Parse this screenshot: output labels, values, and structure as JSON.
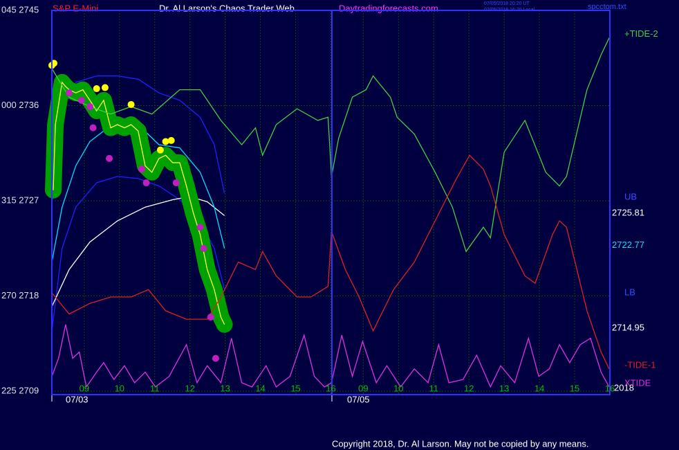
{
  "chart_data": {
    "type": "line",
    "header": {
      "instrument": "S&P E-Mini",
      "title": "Dr. Al Larson's Chaos Trader Web",
      "site": "Daytradingforecasts.com",
      "time_ut": "07/05/2018 20:20 UT",
      "time_local": "07/05/2018 16:20 Local",
      "file": "spcctom.txt"
    },
    "footer": "Copyright 2018, Dr. Al Larson. May not be copied by any means.",
    "xlim": [
      -0.92,
      14.92
    ],
    "xticks": [
      {
        "value": 0,
        "label": "09"
      },
      {
        "value": 1,
        "label": "10"
      },
      {
        "value": 2,
        "label": "11"
      },
      {
        "value": 3,
        "label": "12"
      },
      {
        "value": 4,
        "label": "13"
      },
      {
        "value": 5,
        "label": "14"
      },
      {
        "value": 6,
        "label": "15"
      },
      {
        "value": 7,
        "label": "16"
      },
      {
        "value": 7.92,
        "label": "09"
      },
      {
        "value": 8.92,
        "label": "10"
      },
      {
        "value": 9.92,
        "label": "11"
      },
      {
        "value": 10.92,
        "label": "12"
      },
      {
        "value": 11.92,
        "label": "13"
      },
      {
        "value": 12.92,
        "label": "14"
      },
      {
        "value": 13.92,
        "label": "15"
      },
      {
        "value": 14.92,
        "label": "16"
      }
    ],
    "dates": [
      "07/03",
      "07/05"
    ],
    "year": "2018",
    "ylim": [
      2709,
      2745
    ],
    "yticks": [
      {
        "value": 2709,
        "label": "225 2709"
      },
      {
        "value": 2718,
        "label": "270 2718"
      },
      {
        "value": 2727,
        "label": "315 2727"
      },
      {
        "value": 2736,
        "label": "000 2736"
      },
      {
        "value": 2745,
        "label": "045 2745"
      }
    ],
    "grid": true,
    "series": [
      {
        "color": "#2020ff",
        "x": [
          -0.92,
          -0.63,
          -0.24,
          0.35,
          0.94,
          1.53,
          2.12,
          2.71,
          3.29,
          3.69,
          3.98
        ],
        "values": [
          2729.0,
          2735.5,
          2738.2,
          2738.8,
          2738.8,
          2738.5,
          2737.2,
          2736.5,
          2734.9,
          2732.3,
          2727.7
        ]
      },
      {
        "color": "#2020ff",
        "x": [
          -0.92,
          -0.63,
          -0.24,
          0.35,
          0.94,
          1.53,
          2.12,
          2.71,
          3.29,
          3.69,
          3.98
        ],
        "values": [
          2714.7,
          2722.5,
          2726.4,
          2728.7,
          2729.3,
          2729.1,
          2728.4,
          2727.1,
          2725.1,
          2722.5,
          2718.6
        ]
      },
      {
        "color": "#ffffff",
        "x": [
          -0.92,
          -0.43,
          0.16,
          0.94,
          1.73,
          2.51,
          3.0,
          3.49,
          3.98
        ],
        "values": [
          2717.0,
          2720.5,
          2723.1,
          2725.1,
          2726.4,
          2727.1,
          2727.4,
          2726.9,
          2725.6
        ]
      },
      {
        "color": "#00e0ff",
        "x": [
          -0.92,
          -0.63,
          -0.24,
          0.16,
          0.55,
          0.94,
          1.53,
          2.12,
          2.71,
          3.29,
          3.69,
          3.98
        ],
        "values": [
          2721.2,
          2726.4,
          2730.3,
          2732.6,
          2733.6,
          2733.9,
          2734.2,
          2732.3,
          2732.0,
          2729.7,
          2726.4,
          2722.5
        ]
      },
      {
        "color": "#ffff40",
        "halo": "#00a000",
        "x": [
          -0.88,
          -0.82,
          -0.63,
          -0.53,
          -0.43,
          -0.24,
          -0.04,
          0.16,
          0.35,
          0.55,
          0.75,
          0.94,
          1.14,
          1.33,
          1.53,
          1.73,
          1.92,
          2.12,
          2.31,
          2.51,
          2.71,
          2.9,
          3.1,
          3.29,
          3.49,
          3.69,
          3.88,
          3.98
        ],
        "values": [
          2728.0,
          2734.2,
          2738.2,
          2737.8,
          2737.5,
          2737.2,
          2737.5,
          2736.5,
          2735.5,
          2736.5,
          2733.9,
          2734.2,
          2733.9,
          2734.2,
          2733.6,
          2730.3,
          2729.7,
          2731.0,
          2731.3,
          2730.6,
          2730.6,
          2728.4,
          2725.8,
          2723.8,
          2720.5,
          2718.6,
          2716.0,
          2715.3
        ]
      },
      {
        "name": "+TIDE-2",
        "color": "#40d040",
        "x": [
          -0.92,
          -0.43,
          0.16,
          0.75,
          1.33,
          1.92,
          2.71,
          3.29,
          3.88,
          4.47,
          4.86,
          5.06,
          5.45,
          6.04,
          6.63,
          6.92,
          7.02,
          7.22,
          7.61,
          8.0,
          8.2,
          8.69,
          8.88,
          9.37,
          9.96,
          10.45,
          10.84,
          11.33,
          11.53,
          11.92,
          12.51,
          13.1,
          13.49,
          13.69,
          14.27,
          14.67,
          14.9
        ],
        "values": [
          2739.5,
          2736.8,
          2735.9,
          2735.2,
          2735.9,
          2735.2,
          2737.5,
          2737.5,
          2734.6,
          2732.3,
          2733.9,
          2731.3,
          2734.2,
          2735.7,
          2734.6,
          2734.9,
          2729.3,
          2732.9,
          2736.8,
          2737.5,
          2738.8,
          2736.8,
          2734.9,
          2733.3,
          2729.7,
          2726.4,
          2722.2,
          2724.5,
          2723.5,
          2731.6,
          2734.6,
          2729.7,
          2728.4,
          2729.3,
          2737.5,
          2740.8,
          2742.4
        ]
      },
      {
        "name": "-TIDE-1",
        "color": "#e02020",
        "x": [
          -0.92,
          -0.43,
          0.16,
          0.75,
          1.33,
          1.82,
          2.31,
          2.9,
          3.49,
          3.88,
          4.37,
          4.86,
          5.06,
          5.45,
          6.04,
          6.43,
          6.92,
          7.02,
          7.41,
          7.8,
          8.2,
          8.78,
          9.37,
          9.96,
          10.55,
          10.94,
          11.33,
          11.53,
          11.92,
          12.51,
          12.8,
          13.29,
          13.49,
          13.69,
          14.27,
          14.67,
          14.9
        ],
        "values": [
          2718.3,
          2716.3,
          2717.3,
          2717.9,
          2717.9,
          2718.6,
          2716.6,
          2715.8,
          2715.8,
          2717.9,
          2721.2,
          2720.5,
          2722.2,
          2719.9,
          2717.9,
          2717.9,
          2718.9,
          2724.1,
          2720.5,
          2717.9,
          2714.7,
          2718.6,
          2721.2,
          2725.1,
          2729.0,
          2731.3,
          2730.0,
          2728.4,
          2723.8,
          2719.9,
          2719.2,
          2723.8,
          2725.1,
          2724.5,
          2716.6,
          2712.7,
          2711.1
        ]
      },
      {
        "name": "XTIDE",
        "color": "#e030e0",
        "x": [
          -0.92,
          -0.73,
          -0.53,
          -0.33,
          -0.14,
          0.06,
          0.35,
          0.55,
          0.84,
          1.14,
          1.43,
          1.73,
          2.02,
          2.41,
          2.9,
          3.2,
          3.49,
          3.88,
          4.18,
          4.47,
          4.76,
          5.16,
          5.45,
          5.84,
          6.24,
          6.53,
          6.82,
          7.02,
          7.31,
          7.61,
          7.9,
          8.29,
          8.59,
          8.98,
          9.37,
          9.76,
          10.06,
          10.35,
          10.75,
          11.14,
          11.53,
          11.82,
          12.22,
          12.61,
          12.9,
          13.2,
          13.49,
          13.78,
          14.08,
          14.37,
          14.67,
          14.9
        ],
        "values": [
          2710.4,
          2712.1,
          2715.3,
          2712.1,
          2712.7,
          2709.4,
          2710.8,
          2711.7,
          2710.1,
          2711.4,
          2709.8,
          2710.8,
          2709.4,
          2710.4,
          2713.4,
          2709.8,
          2711.4,
          2709.8,
          2714.0,
          2709.8,
          2709.4,
          2711.4,
          2709.4,
          2710.4,
          2714.3,
          2710.4,
          2709.4,
          2709.8,
          2714.3,
          2710.4,
          2713.7,
          2709.8,
          2711.4,
          2709.4,
          2711.1,
          2709.8,
          2713.4,
          2709.8,
          2710.1,
          2712.4,
          2709.4,
          2711.4,
          2709.8,
          2714.0,
          2710.4,
          2711.1,
          2713.4,
          2711.7,
          2713.4,
          2714.0,
          2710.8,
          2709.4
        ]
      }
    ],
    "markers": [
      {
        "color": "#ffff00",
        "x": [
          -0.92,
          -0.86,
          0.35,
          0.59,
          1.33,
          2.16,
          2.31,
          2.47
        ],
        "values": [
          2739.8,
          2740.0,
          2737.6,
          2737.7,
          2736.1,
          2731.8,
          2732.6,
          2732.7
        ]
      },
      {
        "color": "#c020c0",
        "x": [
          -0.43,
          -0.08,
          0.16,
          0.25,
          0.71,
          1.63,
          1.76,
          2.61,
          3.29,
          3.39,
          3.59,
          3.73
        ],
        "values": [
          2737.2,
          2736.5,
          2735.9,
          2733.9,
          2731.0,
          2730.0,
          2728.7,
          2728.7,
          2724.5,
          2722.5,
          2716.0,
          2712.1
        ]
      }
    ],
    "levels": [
      {
        "name": "UB",
        "value": 2725.81,
        "color": "#ffffff"
      },
      {
        "value": 2722.77,
        "color": "#00e0ff"
      },
      {
        "name": "LB",
        "value": 2714.95,
        "color": "#ffffff"
      }
    ]
  }
}
